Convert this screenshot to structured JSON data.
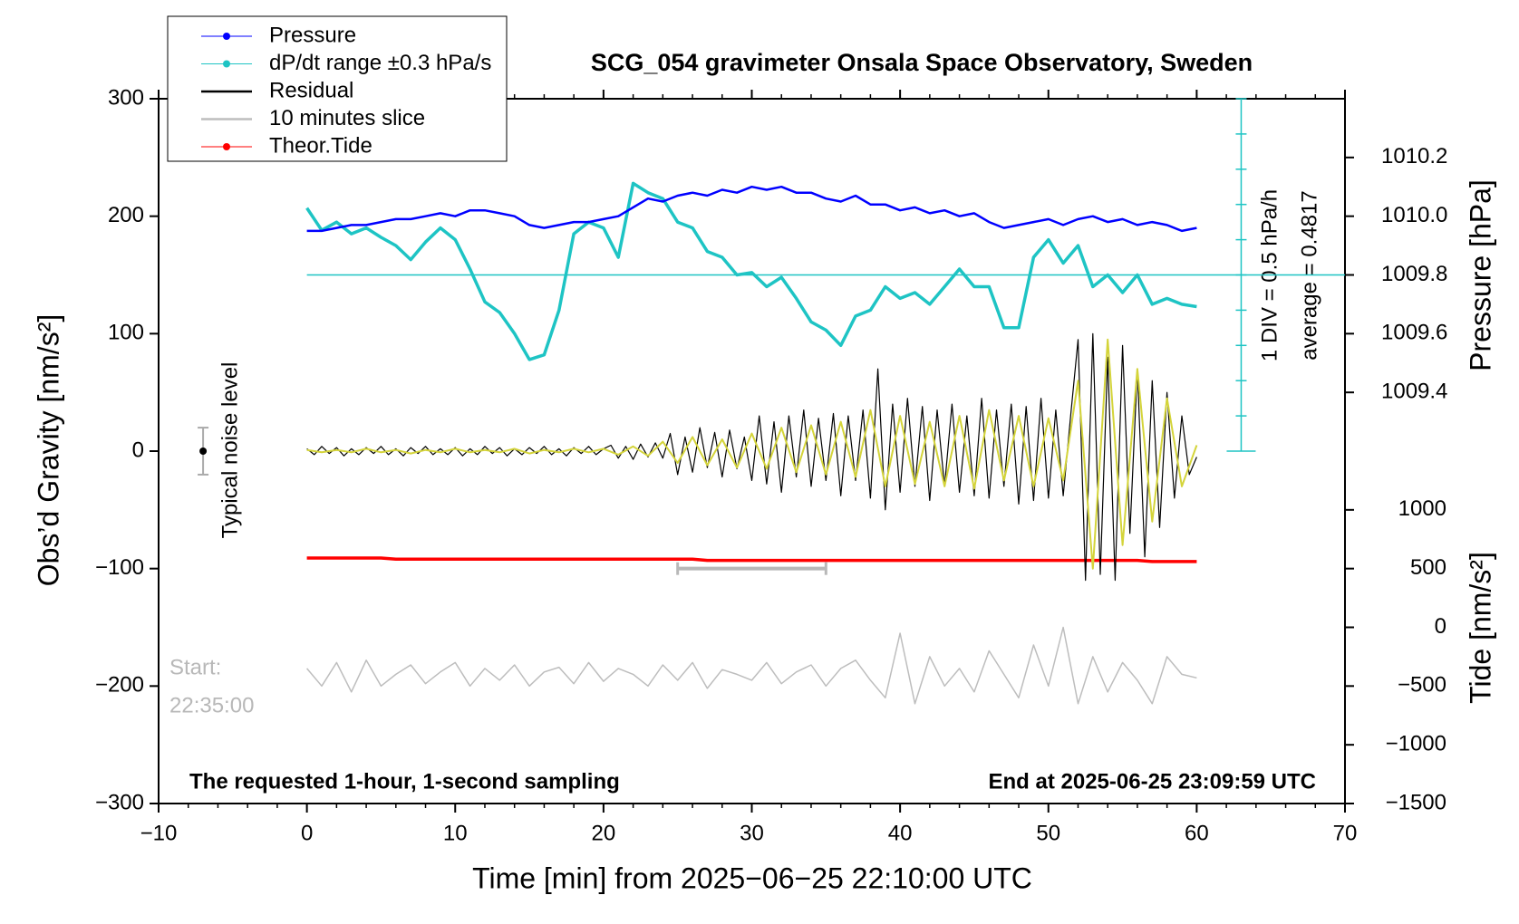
{
  "chart_data": {
    "type": "line",
    "title": "SCG_054 gravimeter Onsala Space Observatory, Sweden",
    "xlabel": "Time [min] from 2025−06−25 22:10:00 UTC",
    "ylabel": "Obs’d Gravity [nm/s²]",
    "y2label": "Pressure [hPa]",
    "y3label": "Tide [nm/s²]",
    "xlim": [
      -10,
      70
    ],
    "xticks": [
      {
        "value": -10,
        "label": "−10"
      },
      0,
      10,
      20,
      30,
      40,
      50,
      60,
      70
    ],
    "ylim": [
      -300,
      300
    ],
    "yticks": [
      {
        "value": -300,
        "label": "−300"
      },
      {
        "value": -200,
        "label": "−200"
      },
      {
        "value": -100,
        "label": "−100"
      },
      0,
      100,
      200,
      300
    ],
    "y2lim": [
      1008.0,
      1010.4
    ],
    "y2ticks": [
      1009.4,
      1009.6,
      1009.8,
      {
        "value": 1010.0,
        "label": "1010.0"
      },
      1010.2
    ],
    "y3lim": [
      -1500,
      4500
    ],
    "y3ticks": [
      {
        "value": -1500,
        "label": "−1500"
      },
      {
        "value": -1000,
        "label": "−1000"
      },
      {
        "value": -500,
        "label": "−500"
      },
      0,
      500,
      1000
    ],
    "annotations": {
      "start_label": "Start:",
      "start_time": "22:35:00",
      "sampling": "The requested 1-hour, 1-second sampling",
      "end": "End at 2025-06-25 23:09:59 UTC",
      "noise_label": "Typical noise level",
      "div": "1 DIV = 0.5 hPa/h",
      "average": "average = 0.4817"
    },
    "noise_level": {
      "x": -7,
      "value": 0,
      "error": 20
    },
    "slice_marker": {
      "x": [
        25,
        35
      ],
      "y": -100
    },
    "dpdt_scale": {
      "x": 63,
      "ticks": [
        0,
        30,
        60,
        90,
        120,
        150,
        180,
        210,
        240,
        270,
        300
      ],
      "average": 150
    },
    "x": [
      0,
      1,
      2,
      3,
      4,
      5,
      6,
      7,
      8,
      9,
      10,
      11,
      12,
      13,
      14,
      15,
      16,
      17,
      18,
      19,
      20,
      21,
      22,
      23,
      24,
      25,
      26,
      27,
      28,
      29,
      30,
      31,
      32,
      33,
      34,
      35,
      36,
      37,
      38,
      39,
      40,
      41,
      42,
      43,
      44,
      45,
      46,
      47,
      48,
      49,
      50,
      51,
      52,
      53,
      54,
      55,
      56,
      57,
      58,
      59,
      60
    ],
    "series": [
      {
        "name": "Pressure",
        "color": "#0000ff",
        "axis": "y2",
        "marker": true,
        "values": [
          1009.95,
          1009.95,
          1009.96,
          1009.97,
          1009.97,
          1009.98,
          1009.99,
          1009.99,
          1010.0,
          1010.01,
          1010.0,
          1010.02,
          1010.02,
          1010.01,
          1010.0,
          1009.97,
          1009.96,
          1009.97,
          1009.98,
          1009.98,
          1009.99,
          1010.0,
          1010.03,
          1010.06,
          1010.05,
          1010.07,
          1010.08,
          1010.07,
          1010.09,
          1010.08,
          1010.1,
          1010.09,
          1010.1,
          1010.08,
          1010.08,
          1010.06,
          1010.05,
          1010.07,
          1010.04,
          1010.04,
          1010.02,
          1010.03,
          1010.01,
          1010.02,
          1010.0,
          1010.01,
          1009.98,
          1009.96,
          1009.97,
          1009.98,
          1009.99,
          1009.97,
          1009.99,
          1010.0,
          1009.98,
          1009.99,
          1009.97,
          1009.98,
          1009.97,
          1009.95,
          1009.96
        ]
      },
      {
        "name": "dP/dt range ±0.3 hPa/s",
        "color": "#1ec4c4",
        "marker": true,
        "values": [
          207,
          188,
          195,
          185,
          190,
          182,
          175,
          163,
          178,
          190,
          180,
          155,
          127,
          118,
          100,
          78,
          82,
          120,
          185,
          195,
          190,
          165,
          228,
          220,
          215,
          195,
          190,
          170,
          165,
          150,
          152,
          140,
          148,
          130,
          110,
          103,
          90,
          115,
          120,
          140,
          130,
          135,
          125,
          140,
          155,
          140,
          140,
          105,
          105,
          165,
          180,
          160,
          175,
          140,
          150,
          135,
          150,
          125,
          130,
          125,
          123
        ]
      },
      {
        "name": "Residual",
        "color": "#000000",
        "x": [
          0,
          0.5,
          1,
          1.5,
          2,
          2.5,
          3,
          3.5,
          4,
          4.5,
          5,
          5.5,
          6,
          6.5,
          7,
          7.5,
          8,
          8.5,
          9,
          9.5,
          10,
          10.5,
          11,
          11.5,
          12,
          12.5,
          13,
          13.5,
          14,
          14.5,
          15,
          15.5,
          16,
          16.5,
          17,
          17.5,
          18,
          18.5,
          19,
          19.5,
          20,
          20.5,
          21,
          21.5,
          22,
          22.5,
          23,
          23.5,
          24,
          24.5,
          25,
          25.5,
          26,
          26.5,
          27,
          27.5,
          28,
          28.5,
          29,
          29.5,
          30,
          30.5,
          31,
          31.5,
          32,
          32.5,
          33,
          33.5,
          34,
          34.5,
          35,
          35.5,
          36,
          36.5,
          37,
          37.5,
          38,
          38.5,
          39,
          39.5,
          40,
          40.5,
          41,
          41.5,
          42,
          42.5,
          43,
          43.5,
          44,
          44.5,
          45,
          45.5,
          46,
          46.5,
          47,
          47.5,
          48,
          48.5,
          49,
          49.5,
          50,
          50.5,
          51,
          51.5,
          52,
          52.5,
          53,
          53.5,
          54,
          54.5,
          55,
          55.5,
          56,
          56.5,
          57,
          57.5,
          58,
          58.5,
          59,
          59.5,
          60
        ],
        "values": [
          2,
          -3,
          4,
          -2,
          3,
          -4,
          2,
          -3,
          3,
          -2,
          4,
          -3,
          2,
          -4,
          3,
          -2,
          4,
          -3,
          2,
          -3,
          3,
          -4,
          2,
          -3,
          4,
          -2,
          3,
          -4,
          2,
          -3,
          3,
          -2,
          4,
          -3,
          2,
          -4,
          3,
          -2,
          4,
          -3,
          2,
          5,
          -6,
          4,
          -7,
          6,
          -5,
          7,
          -6,
          15,
          -20,
          12,
          -18,
          20,
          -14,
          16,
          -22,
          18,
          -15,
          12,
          -25,
          30,
          -28,
          25,
          -35,
          30,
          -22,
          35,
          -30,
          28,
          -25,
          32,
          -38,
          30,
          -25,
          35,
          -40,
          70,
          -50,
          40,
          -35,
          45,
          -30,
          38,
          -42,
          35,
          -30,
          40,
          -35,
          30,
          -38,
          45,
          -40,
          35,
          -30,
          40,
          -45,
          38,
          -42,
          45,
          -40,
          35,
          -38,
          30,
          95,
          -110,
          100,
          -105,
          80,
          -110,
          90,
          -70,
          70,
          -90,
          60,
          -65,
          50,
          -40,
          30,
          -20,
          -5
        ]
      },
      {
        "name": "10 minutes slice",
        "color": "#bdbdbd",
        "values": [
          -185,
          -200,
          -180,
          -205,
          -178,
          -200,
          -190,
          -182,
          -198,
          -188,
          -180,
          -200,
          -185,
          -195,
          -182,
          -200,
          -188,
          -184,
          -198,
          -180,
          -196,
          -185,
          -190,
          -200,
          -182,
          -195,
          -180,
          -202,
          -186,
          -190,
          -195,
          -180,
          -198,
          -188,
          -182,
          -200,
          -185,
          -178,
          -195,
          -210,
          -155,
          -215,
          -175,
          -200,
          -185,
          -205,
          -170,
          -190,
          -210,
          -165,
          -200,
          -150,
          -215,
          -175,
          -205,
          -180,
          -195,
          -215,
          -175,
          -190,
          -193
        ]
      },
      {
        "name": "Theor.Tide",
        "color": "#ff0000",
        "axis": "y3",
        "marker": true,
        "values": [
          590,
          590,
          590,
          590,
          590,
          590,
          580,
          580,
          580,
          580,
          580,
          580,
          580,
          580,
          580,
          580,
          580,
          580,
          580,
          580,
          580,
          580,
          580,
          580,
          580,
          580,
          580,
          570,
          570,
          570,
          570,
          570,
          570,
          570,
          570,
          570,
          570,
          570,
          570,
          570,
          570,
          570,
          570,
          570,
          570,
          570,
          570,
          570,
          570,
          570,
          570,
          570,
          570,
          570,
          570,
          570,
          570,
          560,
          560,
          560,
          560
        ]
      },
      {
        "color": "#d4d43a",
        "values": [
          1,
          -1,
          1,
          -1,
          2,
          -1,
          1,
          -2,
          1,
          -1,
          2,
          -1,
          1,
          -1,
          2,
          -2,
          1,
          -1,
          2,
          -1,
          2,
          -3,
          4,
          -4,
          8,
          -10,
          12,
          -12,
          10,
          -14,
          15,
          -15,
          20,
          -18,
          22,
          -20,
          25,
          -22,
          35,
          -30,
          30,
          -28,
          25,
          -30,
          30,
          -32,
          35,
          -25,
          30,
          -30,
          28,
          -25,
          60,
          -100,
          95,
          -80,
          70,
          -60,
          45,
          -30,
          5
        ]
      }
    ]
  }
}
